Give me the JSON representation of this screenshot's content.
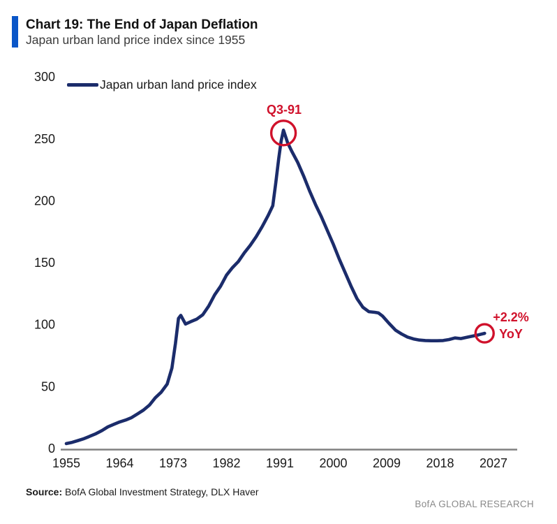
{
  "header": {
    "title": "Chart 19: The End of Japan Deflation",
    "subtitle": "Japan urban land price index since 1955"
  },
  "legend": {
    "label": "Japan urban land price index"
  },
  "annotations": {
    "peak": {
      "label": "Q3-91",
      "year": 1991.6,
      "value": 257
    },
    "end": {
      "label_line1": "+2.2%",
      "label_line2": "YoY",
      "year": 2025.5,
      "value": 93
    }
  },
  "source": {
    "prefix": "Source:",
    "text": " BofA Global Investment Strategy, DLX Haver"
  },
  "branding": "BofA GLOBAL RESEARCH",
  "colors": {
    "line_navy": "#1b2c6b",
    "accent_red": "#d0112b",
    "title_bar_blue": "#0a56c8",
    "axis_gray": "#808080",
    "branding_gray": "#8a8a8a"
  },
  "chart_data": {
    "type": "line",
    "title": "Chart 19: The End of Japan Deflation",
    "subtitle": "Japan urban land price index since 1955",
    "xlabel": "",
    "ylabel": "",
    "xlim": [
      1954,
      2031
    ],
    "ylim": [
      0,
      300
    ],
    "grid": false,
    "legend_position": "top-left",
    "x_ticks": [
      1955,
      1964,
      1973,
      1982,
      1991,
      2000,
      2009,
      2018,
      2027
    ],
    "y_ticks": [
      0,
      50,
      100,
      150,
      200,
      250,
      300
    ],
    "series": [
      {
        "name": "Japan urban land price index",
        "points": [
          [
            1955,
            4
          ],
          [
            1956,
            5
          ],
          [
            1957,
            6.5
          ],
          [
            1958,
            8
          ],
          [
            1959,
            10
          ],
          [
            1960,
            12
          ],
          [
            1961,
            14.5
          ],
          [
            1962,
            17.5
          ],
          [
            1963,
            19.5
          ],
          [
            1964,
            21.5
          ],
          [
            1965,
            23
          ],
          [
            1966,
            25
          ],
          [
            1967,
            28
          ],
          [
            1968,
            31
          ],
          [
            1969,
            35
          ],
          [
            1970,
            41
          ],
          [
            1971,
            45.5
          ],
          [
            1972,
            52
          ],
          [
            1972.8,
            65
          ],
          [
            1973.4,
            85
          ],
          [
            1973.9,
            105
          ],
          [
            1974.3,
            107.5
          ],
          [
            1975.1,
            100.5
          ],
          [
            1976,
            102.5
          ],
          [
            1977,
            104.5
          ],
          [
            1978,
            108
          ],
          [
            1979,
            115
          ],
          [
            1980,
            124
          ],
          [
            1981,
            131
          ],
          [
            1982,
            140
          ],
          [
            1983,
            146
          ],
          [
            1984,
            151
          ],
          [
            1985,
            158
          ],
          [
            1986,
            164
          ],
          [
            1987,
            171
          ],
          [
            1988,
            179
          ],
          [
            1989,
            188
          ],
          [
            1989.8,
            196
          ],
          [
            1990.3,
            214
          ],
          [
            1990.8,
            234
          ],
          [
            1991.2,
            248
          ],
          [
            1991.6,
            257
          ],
          [
            1992.3,
            247
          ],
          [
            1993,
            240
          ],
          [
            1994,
            231
          ],
          [
            1995,
            220
          ],
          [
            1996,
            208
          ],
          [
            1997,
            197
          ],
          [
            1998,
            187
          ],
          [
            1999,
            176
          ],
          [
            2000,
            165
          ],
          [
            2001,
            153
          ],
          [
            2002,
            142
          ],
          [
            2003,
            131
          ],
          [
            2004,
            121
          ],
          [
            2005,
            114
          ],
          [
            2006,
            110.5
          ],
          [
            2007,
            110
          ],
          [
            2007.6,
            109.5
          ],
          [
            2008.3,
            107
          ],
          [
            2009.4,
            101
          ],
          [
            2010.5,
            95.5
          ],
          [
            2011.5,
            92.5
          ],
          [
            2012.5,
            90
          ],
          [
            2013.5,
            88.5
          ],
          [
            2014.5,
            87.6
          ],
          [
            2015.5,
            87.2
          ],
          [
            2016.5,
            87
          ],
          [
            2017.5,
            87
          ],
          [
            2018.5,
            87.2
          ],
          [
            2019.5,
            88
          ],
          [
            2020.5,
            89.3
          ],
          [
            2021.5,
            88.8
          ],
          [
            2022.5,
            89.8
          ],
          [
            2023.5,
            90.8
          ],
          [
            2024.5,
            91.8
          ],
          [
            2025.5,
            93
          ]
        ]
      }
    ]
  }
}
